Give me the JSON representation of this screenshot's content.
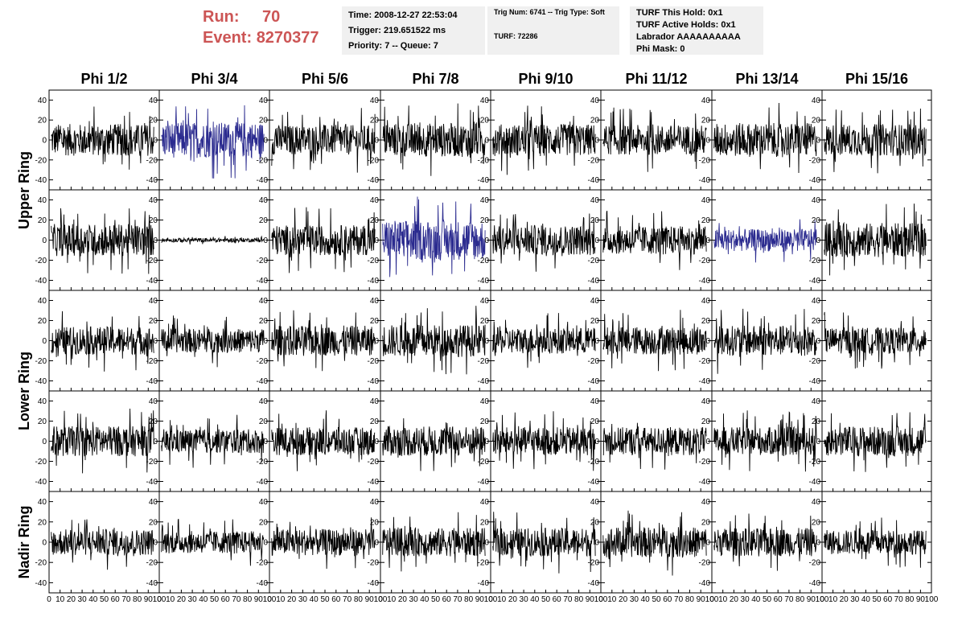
{
  "header": {
    "run_label": "Run:",
    "run_value": "70",
    "event_label": "Event:",
    "event_value": "8270377",
    "time": "Time: 2008-12-27 22:53:04",
    "trigger": "Trigger: 219.651522 ms",
    "priority": "Priority: 7 -- Queue: 7",
    "trig_num": "Trig Num: 6741 -- Trig Type: Soft",
    "turf": "TURF: 72286",
    "turf_hold": "TURF This Hold: 0x1",
    "turf_active": "TURF Active Holds: 0x1",
    "labrador": "Labrador AAAAAAAAAA",
    "phi_mask": "Phi Mask: 0"
  },
  "chart_data": {
    "type": "line",
    "columns": [
      "Phi 1/2",
      "Phi 3/4",
      "Phi 5/6",
      "Phi 7/8",
      "Phi 9/10",
      "Phi 11/12",
      "Phi 13/14",
      "Phi 15/16"
    ],
    "ring_labels": [
      "Upper Ring",
      "Lower Ring",
      "Nadir Ring"
    ],
    "rows": 5,
    "ylim": [
      -50,
      50
    ],
    "xlim": [
      0,
      100
    ],
    "yticks": [
      -40,
      -20,
      0,
      20,
      40
    ],
    "xticks": [
      0,
      10,
      20,
      30,
      40,
      50,
      60,
      70,
      80,
      90,
      100
    ],
    "x_tick_labels": [
      "0",
      "10",
      "20",
      "30",
      "40",
      "50",
      "60",
      "70",
      "80",
      "90",
      "100"
    ],
    "colors": {
      "normal": "#000000",
      "triggered": "#2b2b8f",
      "header_red": "#cc5555"
    },
    "triggered_panels": [
      [
        0,
        1
      ],
      [
        1,
        3
      ],
      [
        1,
        6
      ]
    ],
    "panel_amplitude": [
      [
        16,
        18,
        15,
        17,
        16,
        15,
        17,
        16
      ],
      [
        16,
        2,
        15,
        20,
        15,
        14,
        11,
        17
      ],
      [
        14,
        12,
        15,
        16,
        13,
        14,
        15,
        13
      ],
      [
        15,
        12,
        14,
        15,
        14,
        14,
        14,
        15
      ],
      [
        13,
        11,
        13,
        14,
        14,
        15,
        14,
        12
      ]
    ]
  }
}
